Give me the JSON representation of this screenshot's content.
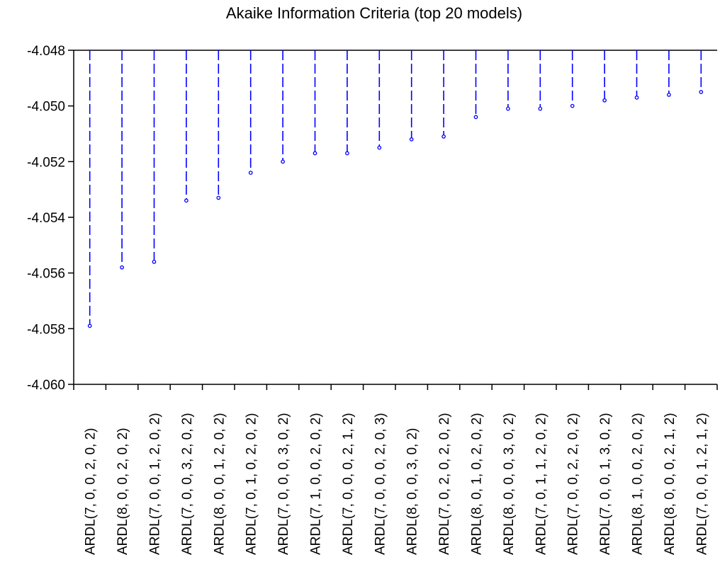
{
  "chart_data": {
    "type": "scatter",
    "title": "Akaike Information Criteria (top 20 models)",
    "xlabel": "",
    "ylabel": "",
    "ylim": [
      -4.06,
      -4.048
    ],
    "yticks": [
      "-4.060",
      "-4.058",
      "-4.056",
      "-4.054",
      "-4.052",
      "-4.050",
      "-4.048"
    ],
    "categories": [
      "ARDL(7, 0, 0, 2, 0, 2)",
      "ARDL(8, 0, 0, 2, 0, 2)",
      "ARDL(7, 0, 0, 1, 2, 0, 2)",
      "ARDL(7, 0, 0, 3, 2, 0, 2)",
      "ARDL(8, 0, 0, 1, 2, 0, 2)",
      "ARDL(7, 0, 1, 0, 2, 0, 2)",
      "ARDL(7, 0, 0, 0, 3, 0, 2)",
      "ARDL(7, 1, 0, 0, 2, 0, 2)",
      "ARDL(7, 0, 0, 0, 2, 1, 2)",
      "ARDL(7, 0, 0, 0, 2, 0, 3)",
      "ARDL(8, 0, 0, 3, 0, 2)",
      "ARDL(7, 0, 2, 0, 2, 0, 2)",
      "ARDL(8, 0, 1, 0, 2, 0, 2)",
      "ARDL(8, 0, 0, 0, 3, 0, 2)",
      "ARDL(7, 0, 1, 1, 2, 0, 2)",
      "ARDL(7, 0, 0, 2, 2, 0, 2)",
      "ARDL(7, 0, 0, 1, 3, 0, 2)",
      "ARDL(8, 1, 0, 0, 2, 0, 2)",
      "ARDL(8, 0, 0, 0, 2, 1, 2)",
      "ARDL(7, 0, 0, 1, 2, 1, 2)"
    ],
    "values": [
      -4.0579,
      -4.0558,
      -4.0556,
      -4.0534,
      -4.0533,
      -4.0524,
      -4.052,
      -4.0517,
      -4.0517,
      -4.0515,
      -4.0512,
      -4.0511,
      -4.0504,
      -4.0501,
      -4.0501,
      -4.05,
      -4.0498,
      -4.0497,
      -4.0496,
      -4.0495
    ],
    "grid": false,
    "legend": "none",
    "colors": {
      "series": "#0000ff",
      "axis": "#000000",
      "text": "#000000"
    }
  }
}
